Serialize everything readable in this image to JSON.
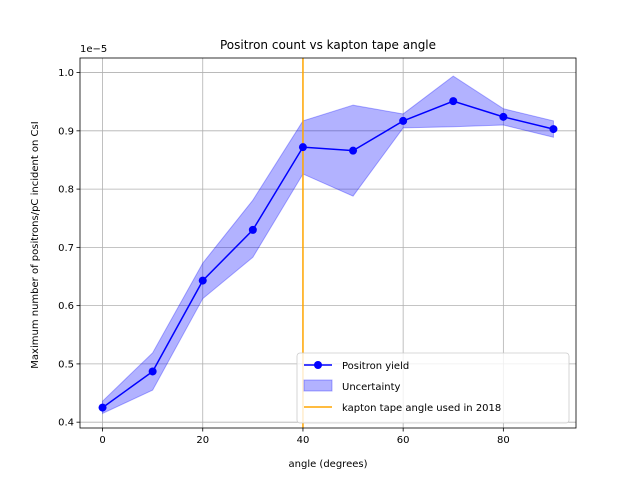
{
  "chart_data": {
    "type": "line",
    "title": "Positron count vs kapton tape angle",
    "xlabel": "angle (degrees)",
    "ylabel": "Maximum number of positrons/pC incident on CsI",
    "offset_text": "1e−5",
    "xlim": [
      -4.5,
      94.5
    ],
    "ylim": [
      0.39,
      1.025
    ],
    "xticks": [
      0,
      20,
      40,
      60,
      80
    ],
    "xtick_labels": [
      "0",
      "20",
      "40",
      "60",
      "80"
    ],
    "yticks": [
      0.4,
      0.5,
      0.6,
      0.7,
      0.8,
      0.9,
      1.0
    ],
    "ytick_labels": [
      "0.4",
      "0.5",
      "0.6",
      "0.7",
      "0.8",
      "0.9",
      "1.0"
    ],
    "grid": true,
    "legend_position": "lower-right",
    "series": [
      {
        "name": "Positron yield",
        "kind": "line-markers",
        "color": "#0000ff",
        "x": [
          0,
          10,
          20,
          30,
          40,
          50,
          60,
          70,
          80,
          90
        ],
        "y": [
          0.425,
          0.487,
          0.643,
          0.73,
          0.872,
          0.866,
          0.917,
          0.951,
          0.924,
          0.903
        ]
      },
      {
        "name": "Uncertainty",
        "kind": "band",
        "color": "#0000ff",
        "x": [
          0,
          10,
          20,
          30,
          40,
          50,
          60,
          70,
          80,
          90
        ],
        "lower": [
          0.415,
          0.455,
          0.612,
          0.683,
          0.826,
          0.788,
          0.905,
          0.907,
          0.91,
          0.889
        ],
        "upper": [
          0.436,
          0.519,
          0.673,
          0.781,
          0.917,
          0.944,
          0.929,
          0.994,
          0.938,
          0.917
        ]
      },
      {
        "name": "kapton tape angle used in 2018",
        "kind": "vline",
        "color": "#ffa500",
        "x": 40
      }
    ]
  }
}
